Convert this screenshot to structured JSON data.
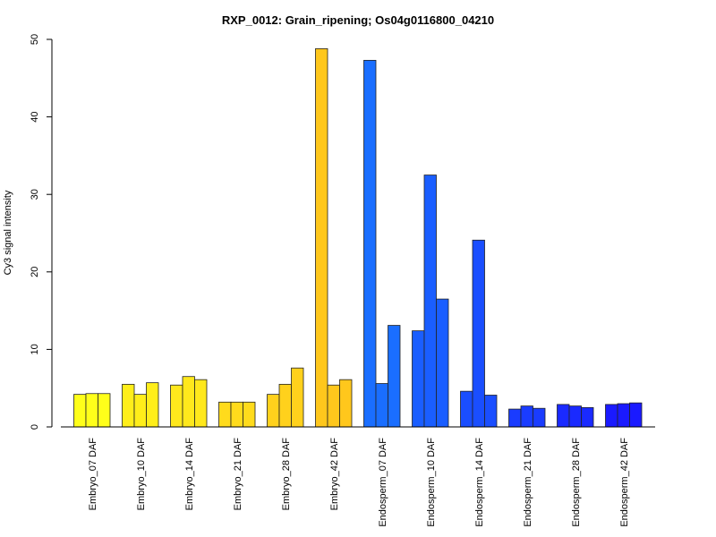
{
  "chart_data": {
    "type": "bar",
    "title": "RXP_0012: Grain_ripening; Os04g0116800_04210",
    "xlabel": "",
    "ylabel": "Cy3 signal intensity",
    "ylim": [
      0,
      50
    ],
    "yticks": [
      0,
      10,
      20,
      30,
      40,
      50
    ],
    "grid": false,
    "legend": "none",
    "bars_per_group": 3,
    "groups": [
      {
        "label": "Embryo_07 DAF",
        "values": [
          4.2,
          4.3,
          4.3
        ],
        "color": "#FFFF1A"
      },
      {
        "label": "Embryo_10 DAF",
        "values": [
          5.5,
          4.2,
          5.7
        ],
        "color": "#FFEE1A"
      },
      {
        "label": "Embryo_14 DAF",
        "values": [
          5.4,
          6.5,
          6.1
        ],
        "color": "#FFE81C"
      },
      {
        "label": "Embryo_21 DAF",
        "values": [
          3.2,
          3.2,
          3.2
        ],
        "color": "#FFDB1C"
      },
      {
        "label": "Embryo_28 DAF",
        "values": [
          4.2,
          5.5,
          7.6
        ],
        "color": "#FFD11C"
      },
      {
        "label": "Embryo_42 DAF",
        "values": [
          48.8,
          5.4,
          6.1
        ],
        "color": "#FFC71C"
      },
      {
        "label": "Endosperm_07 DAF",
        "values": [
          47.3,
          5.6,
          13.1
        ],
        "color": "#1A6EFF"
      },
      {
        "label": "Endosperm_10 DAF",
        "values": [
          12.4,
          32.5,
          16.5
        ],
        "color": "#1A5EFF"
      },
      {
        "label": "Endosperm_14 DAF",
        "values": [
          4.6,
          24.1,
          4.1
        ],
        "color": "#1A4EFF"
      },
      {
        "label": "Endosperm_21 DAF",
        "values": [
          2.3,
          2.7,
          2.4
        ],
        "color": "#1A3CFF"
      },
      {
        "label": "Endosperm_28 DAF",
        "values": [
          2.9,
          2.7,
          2.5
        ],
        "color": "#1A2AFF"
      },
      {
        "label": "Endosperm_42 DAF",
        "values": [
          2.9,
          3.0,
          3.1
        ],
        "color": "#1A1AFF"
      }
    ]
  }
}
